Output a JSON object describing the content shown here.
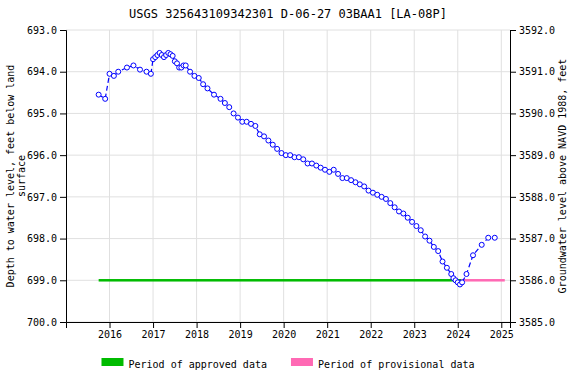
{
  "chart_data": {
    "type": "line",
    "title": "USGS 325643109342301 D-06-27 03BAA1 [LA-08P]",
    "y_label": "Depth to water level, feet below land\nsurface",
    "y2_label": "Groundwater level above NAVD 1988, feet",
    "xlim": [
      2015.0,
      2025.2
    ],
    "xticks": [
      2016,
      2017,
      2018,
      2019,
      2020,
      2021,
      2022,
      2023,
      2024,
      2025
    ],
    "ylim": [
      700.0,
      693.0
    ],
    "yticks": [
      {
        "value": 693.0,
        "label": "693.0"
      },
      {
        "value": 694.0,
        "label": "694.0"
      },
      {
        "value": 695.0,
        "label": "695.0"
      },
      {
        "value": 696.0,
        "label": "696.0"
      },
      {
        "value": 697.0,
        "label": "697.0"
      },
      {
        "value": 698.0,
        "label": "698.0"
      },
      {
        "value": 699.0,
        "label": "699.0"
      },
      {
        "value": 700.0,
        "label": "700.0"
      }
    ],
    "y2lim": [
      3585.0,
      3592.0
    ],
    "y2ticks": [
      {
        "value": 3592.0,
        "label": "3592.0"
      },
      {
        "value": 3591.0,
        "label": "3591.0"
      },
      {
        "value": 3590.0,
        "label": "3590.0"
      },
      {
        "value": 3589.0,
        "label": "3589.0"
      },
      {
        "value": 3588.0,
        "label": "3588.0"
      },
      {
        "value": 3587.0,
        "label": "3587.0"
      },
      {
        "value": 3586.0,
        "label": "3586.0"
      },
      {
        "value": 3585.0,
        "label": "3585.0"
      }
    ],
    "grid": true,
    "x": [
      2015.75,
      2015.9,
      2016.0,
      2016.1,
      2016.2,
      2016.4,
      2016.55,
      2016.7,
      2016.85,
      2016.95,
      2017.0,
      2017.05,
      2017.1,
      2017.15,
      2017.2,
      2017.25,
      2017.3,
      2017.35,
      2017.4,
      2017.45,
      2017.5,
      2017.55,
      2017.6,
      2017.65,
      2017.7,
      2017.75,
      2017.85,
      2017.95,
      2018.05,
      2018.15,
      2018.25,
      2018.4,
      2018.55,
      2018.65,
      2018.75,
      2018.85,
      2018.95,
      2019.05,
      2019.15,
      2019.25,
      2019.35,
      2019.45,
      2019.55,
      2019.65,
      2019.75,
      2019.85,
      2019.95,
      2020.05,
      2020.15,
      2020.25,
      2020.35,
      2020.45,
      2020.55,
      2020.65,
      2020.75,
      2020.85,
      2020.95,
      2021.05,
      2021.15,
      2021.25,
      2021.35,
      2021.45,
      2021.55,
      2021.65,
      2021.75,
      2021.85,
      2021.95,
      2022.05,
      2022.15,
      2022.25,
      2022.35,
      2022.45,
      2022.55,
      2022.65,
      2022.75,
      2022.85,
      2022.95,
      2023.05,
      2023.15,
      2023.25,
      2023.35,
      2023.45,
      2023.55,
      2023.65,
      2023.75,
      2023.85,
      2023.9,
      2023.95,
      2024.0,
      2024.05,
      2024.1,
      2024.2,
      2024.35,
      2024.55,
      2024.7,
      2024.85
    ],
    "series": [
      {
        "color": "#0000FF",
        "marker": "circle",
        "line_style": "dashed",
        "values": [
          694.55,
          694.65,
          694.05,
          694.1,
          694.0,
          693.9,
          693.85,
          693.95,
          694.0,
          694.05,
          693.7,
          693.65,
          693.6,
          693.55,
          693.6,
          693.65,
          693.6,
          693.55,
          693.58,
          693.62,
          693.75,
          693.8,
          693.9,
          693.9,
          693.85,
          693.85,
          694.0,
          694.1,
          694.15,
          694.3,
          694.4,
          694.55,
          694.65,
          694.75,
          694.85,
          695.0,
          695.1,
          695.2,
          695.2,
          695.25,
          695.3,
          695.5,
          695.55,
          695.65,
          695.75,
          695.85,
          695.95,
          696.0,
          696.0,
          696.05,
          696.05,
          696.1,
          696.2,
          696.2,
          696.25,
          696.3,
          696.35,
          696.4,
          696.35,
          696.45,
          696.55,
          696.55,
          696.6,
          696.65,
          696.7,
          696.75,
          696.85,
          696.9,
          696.95,
          697.0,
          697.05,
          697.15,
          697.25,
          697.35,
          697.4,
          697.5,
          697.6,
          697.7,
          697.8,
          697.95,
          698.05,
          698.2,
          698.3,
          698.55,
          698.7,
          698.85,
          698.95,
          699.0,
          699.05,
          699.1,
          699.05,
          698.85,
          698.4,
          698.15,
          697.98,
          697.98
        ]
      }
    ],
    "period_y": 699.0,
    "periods": [
      {
        "name": "Period of approved data",
        "color": "#00BB00",
        "x": [
          2015.75,
          2024.08
        ]
      },
      {
        "name": "Period of provisional data",
        "color": "#FF69B4",
        "x": [
          2024.08,
          2025.08
        ]
      }
    ]
  }
}
